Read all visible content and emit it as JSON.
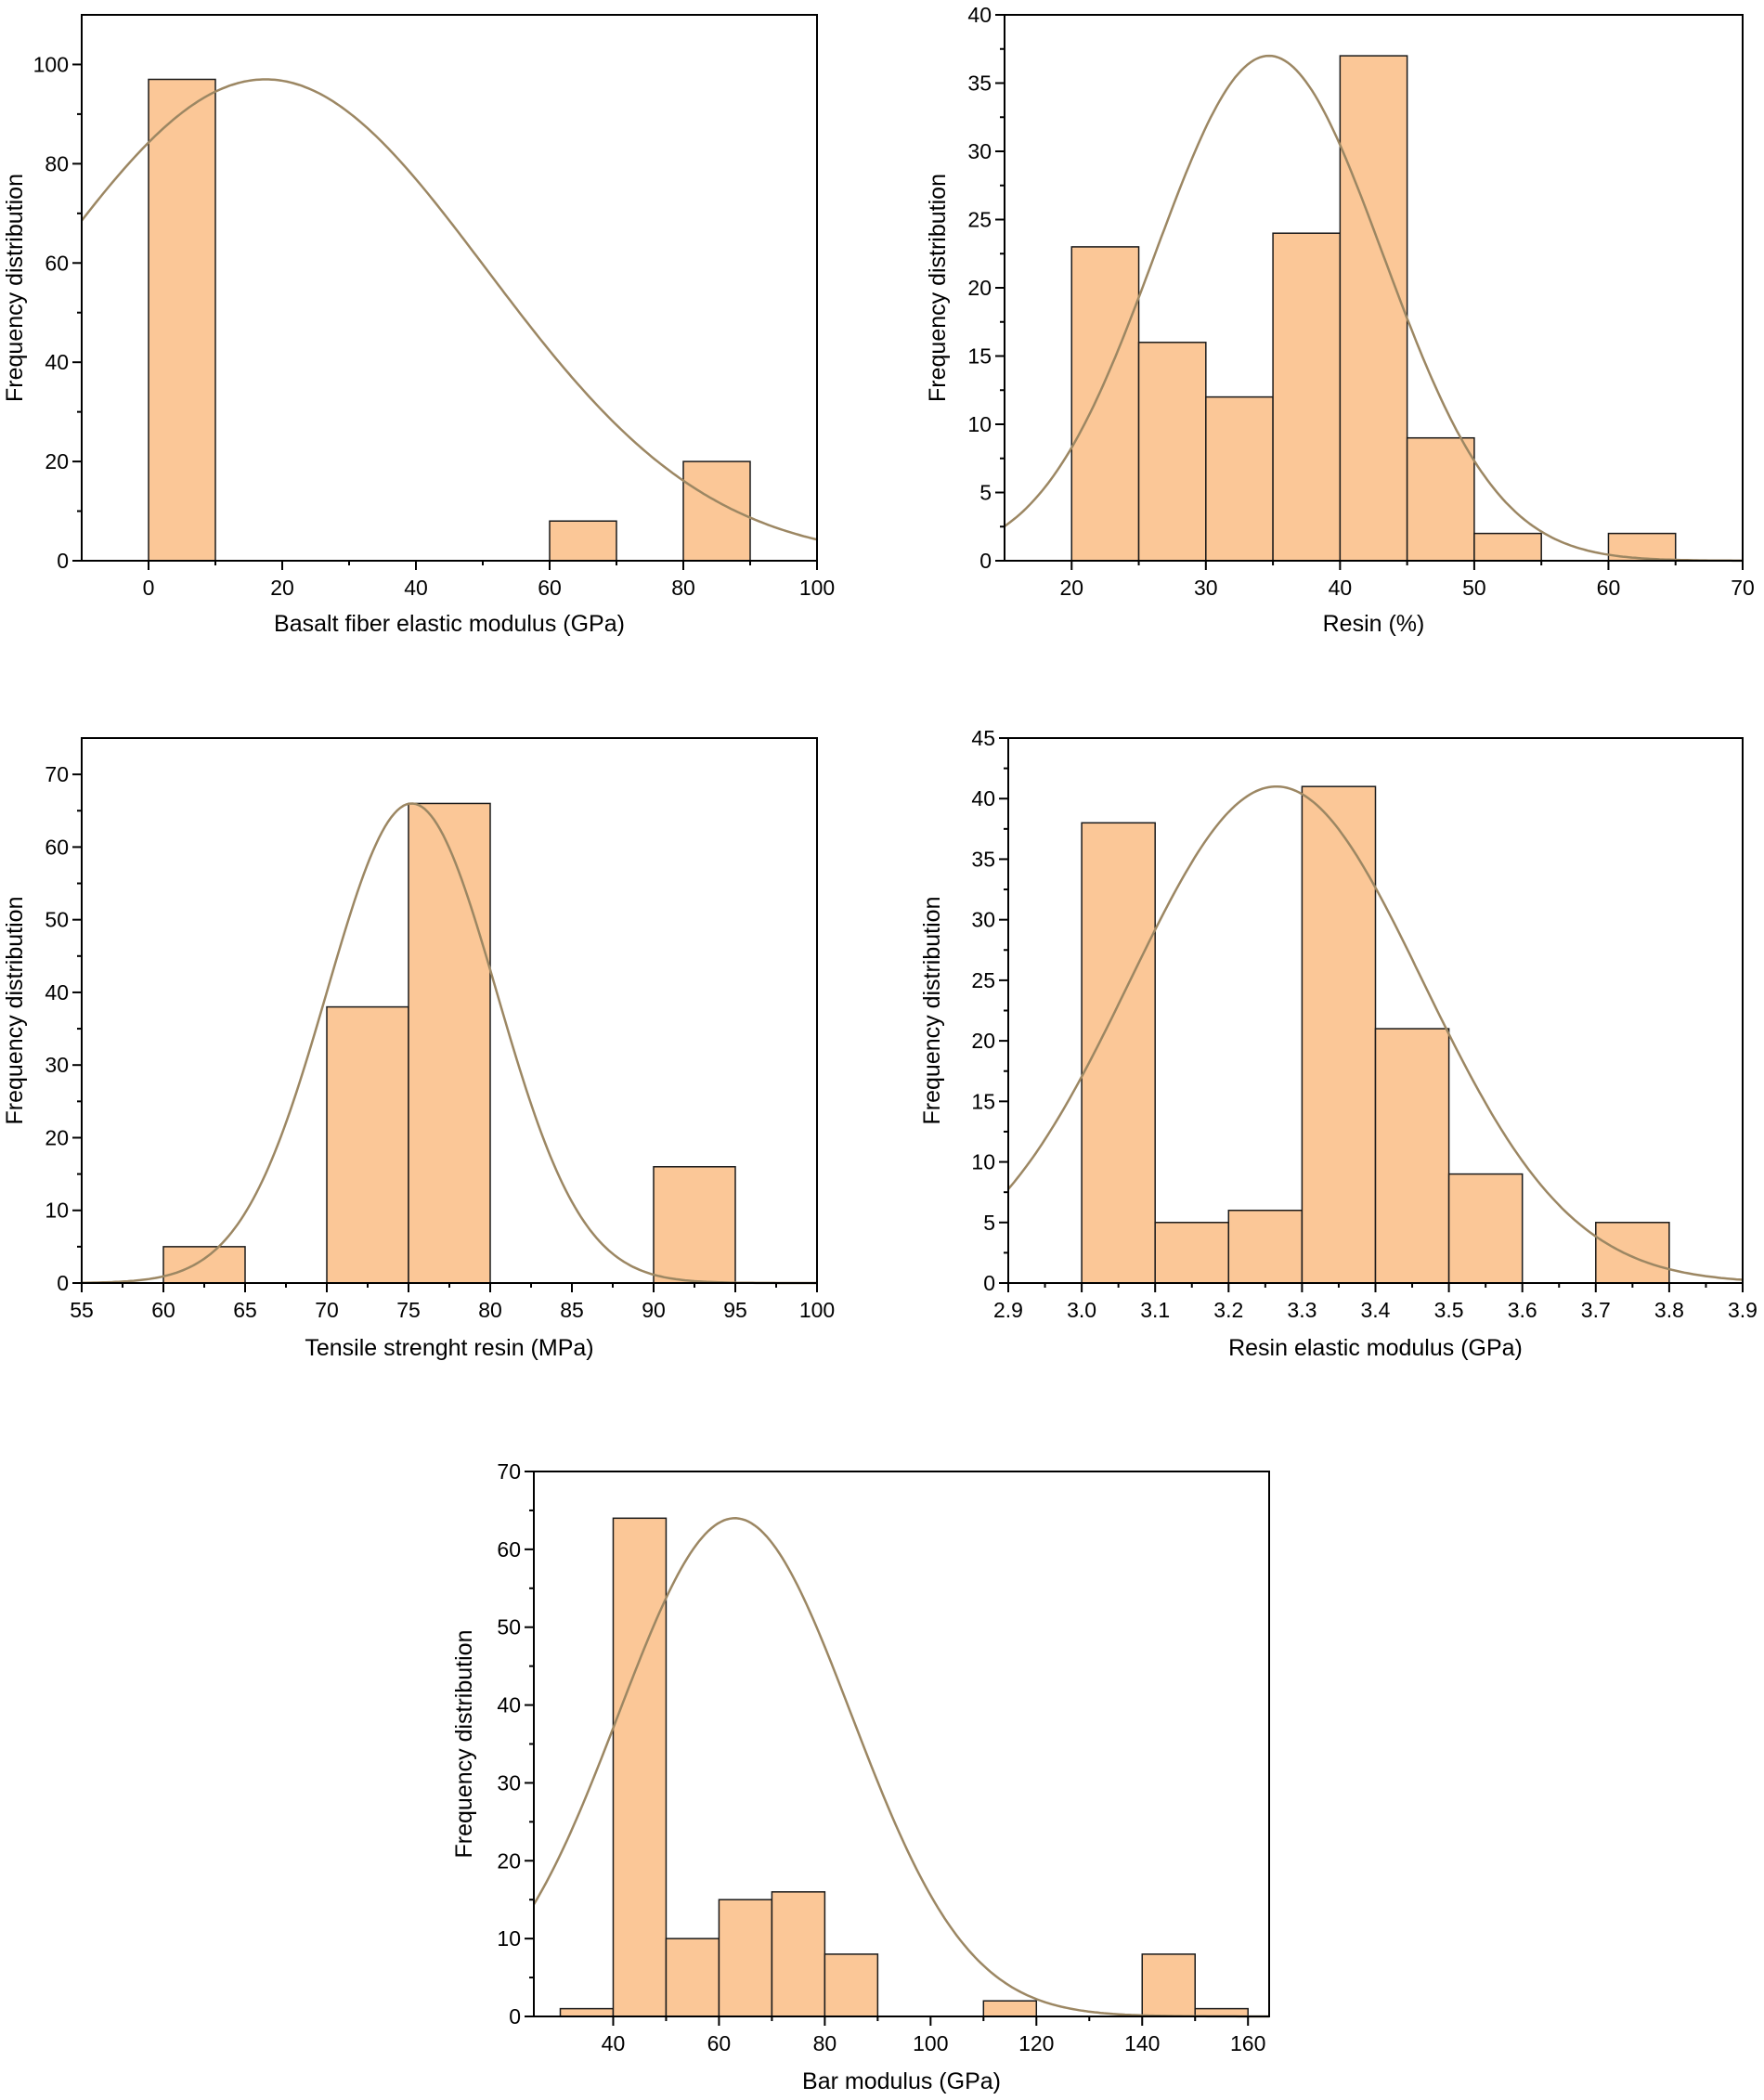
{
  "colors": {
    "bar_fill": "#FBC797",
    "bar_edge": "#1a1a1a",
    "fit_line": "#9C8763",
    "axis": "#000000"
  },
  "chart_data": [
    {
      "id": "basalt-modulus",
      "type": "bar",
      "series_kind": "histogram with normal fit",
      "xlabel": "Basalt fiber elastic modulus (GPa)",
      "ylabel": "Frequency distribution",
      "xlim": [
        -10,
        100
      ],
      "ylim": [
        0,
        110
      ],
      "xticks": [
        "0",
        "20",
        "40",
        "60",
        "80",
        "100"
      ],
      "xtick_values": [
        0,
        20,
        40,
        60,
        80,
        100
      ],
      "yticks": [
        "0",
        "20",
        "40",
        "60",
        "80",
        "100"
      ],
      "ytick_values": [
        0,
        20,
        40,
        60,
        80,
        100
      ],
      "bins": [
        [
          0,
          10,
          97
        ],
        [
          60,
          70,
          8
        ],
        [
          80,
          90,
          20
        ]
      ],
      "fit": {
        "peak": 97,
        "mean": 17.5,
        "sd": 33
      }
    },
    {
      "id": "resin-content",
      "type": "bar",
      "series_kind": "histogram with normal fit",
      "xlabel": "Resin (%)",
      "ylabel": "Frequency distribution",
      "xlim": [
        15,
        70
      ],
      "ylim": [
        0,
        40
      ],
      "xticks": [
        "20",
        "30",
        "40",
        "50",
        "60",
        "70"
      ],
      "xtick_values": [
        20,
        30,
        40,
        50,
        60,
        70
      ],
      "yticks": [
        "0",
        "5",
        "10",
        "15",
        "20",
        "25",
        "30",
        "35",
        "40"
      ],
      "ytick_values": [
        0,
        5,
        10,
        15,
        20,
        25,
        30,
        35,
        40
      ],
      "bins": [
        [
          20,
          25,
          23
        ],
        [
          25,
          30,
          16
        ],
        [
          30,
          35,
          12
        ],
        [
          35,
          40,
          24
        ],
        [
          40,
          45,
          37
        ],
        [
          45,
          50,
          9
        ],
        [
          50,
          55,
          2
        ],
        [
          60,
          65,
          2
        ]
      ],
      "fit": {
        "peak": 37,
        "mean": 34.7,
        "sd": 8.5
      }
    },
    {
      "id": "tensile-resin",
      "type": "bar",
      "series_kind": "histogram with normal fit",
      "xlabel": "Tensile strenght resin (MPa)",
      "ylabel": "Frequency distribution",
      "xlim": [
        55,
        100
      ],
      "ylim": [
        0,
        75
      ],
      "xticks": [
        "55",
        "60",
        "65",
        "70",
        "75",
        "80",
        "85",
        "90",
        "95",
        "100"
      ],
      "xtick_values": [
        55,
        60,
        65,
        70,
        75,
        80,
        85,
        90,
        95,
        100
      ],
      "yticks": [
        "0",
        "10",
        "20",
        "30",
        "40",
        "50",
        "60",
        "70"
      ],
      "ytick_values": [
        0,
        10,
        20,
        30,
        40,
        50,
        60,
        70
      ],
      "bins": [
        [
          60,
          65,
          5
        ],
        [
          70,
          75,
          38
        ],
        [
          75,
          80,
          66
        ],
        [
          90,
          95,
          16
        ]
      ],
      "fit": {
        "peak": 66,
        "mean": 75.2,
        "sd": 5.2
      }
    },
    {
      "id": "resin-elastic-modulus",
      "type": "bar",
      "series_kind": "histogram with normal fit",
      "xlabel": "Resin elastic modulus (GPa)",
      "ylabel": "Frequency distribution",
      "xlim": [
        2.9,
        3.9
      ],
      "ylim": [
        0,
        45
      ],
      "xticks": [
        "2.9",
        "3.0",
        "3.1",
        "3.2",
        "3.3",
        "3.4",
        "3.5",
        "3.6",
        "3.7",
        "3.8",
        "3.9"
      ],
      "xtick_values": [
        2.9,
        3.0,
        3.1,
        3.2,
        3.3,
        3.4,
        3.5,
        3.6,
        3.7,
        3.8,
        3.9
      ],
      "yticks": [
        "0",
        "5",
        "10",
        "15",
        "20",
        "25",
        "30",
        "35",
        "40",
        "45"
      ],
      "ytick_values": [
        0,
        5,
        10,
        15,
        20,
        25,
        30,
        35,
        40,
        45
      ],
      "bins": [
        [
          3.0,
          3.1,
          38
        ],
        [
          3.1,
          3.2,
          5
        ],
        [
          3.2,
          3.3,
          6
        ],
        [
          3.3,
          3.4,
          41
        ],
        [
          3.4,
          3.5,
          21
        ],
        [
          3.5,
          3.6,
          9
        ],
        [
          3.7,
          3.8,
          5
        ]
      ],
      "fit": {
        "peak": 41,
        "mean": 3.265,
        "sd": 0.2
      }
    },
    {
      "id": "bar-modulus",
      "type": "bar",
      "series_kind": "histogram with normal fit",
      "xlabel": "Bar modulus (GPa)",
      "ylabel": "Frequency distribution",
      "xlim": [
        25,
        164
      ],
      "ylim": [
        0,
        70
      ],
      "xticks": [
        "40",
        "60",
        "80",
        "100",
        "120",
        "140",
        "160"
      ],
      "xtick_values": [
        40,
        60,
        80,
        100,
        120,
        140,
        160
      ],
      "yticks": [
        "0",
        "10",
        "20",
        "30",
        "40",
        "50",
        "60",
        "70"
      ],
      "ytick_values": [
        0,
        10,
        20,
        30,
        40,
        50,
        60,
        70
      ],
      "bins": [
        [
          30,
          40,
          1
        ],
        [
          40,
          50,
          64
        ],
        [
          50,
          60,
          10
        ],
        [
          60,
          70,
          15
        ],
        [
          70,
          80,
          16
        ],
        [
          80,
          90,
          8
        ],
        [
          110,
          120,
          2
        ],
        [
          140,
          150,
          8
        ],
        [
          150,
          160,
          1
        ]
      ],
      "fit": {
        "peak": 64,
        "mean": 63,
        "sd": 22
      }
    }
  ]
}
